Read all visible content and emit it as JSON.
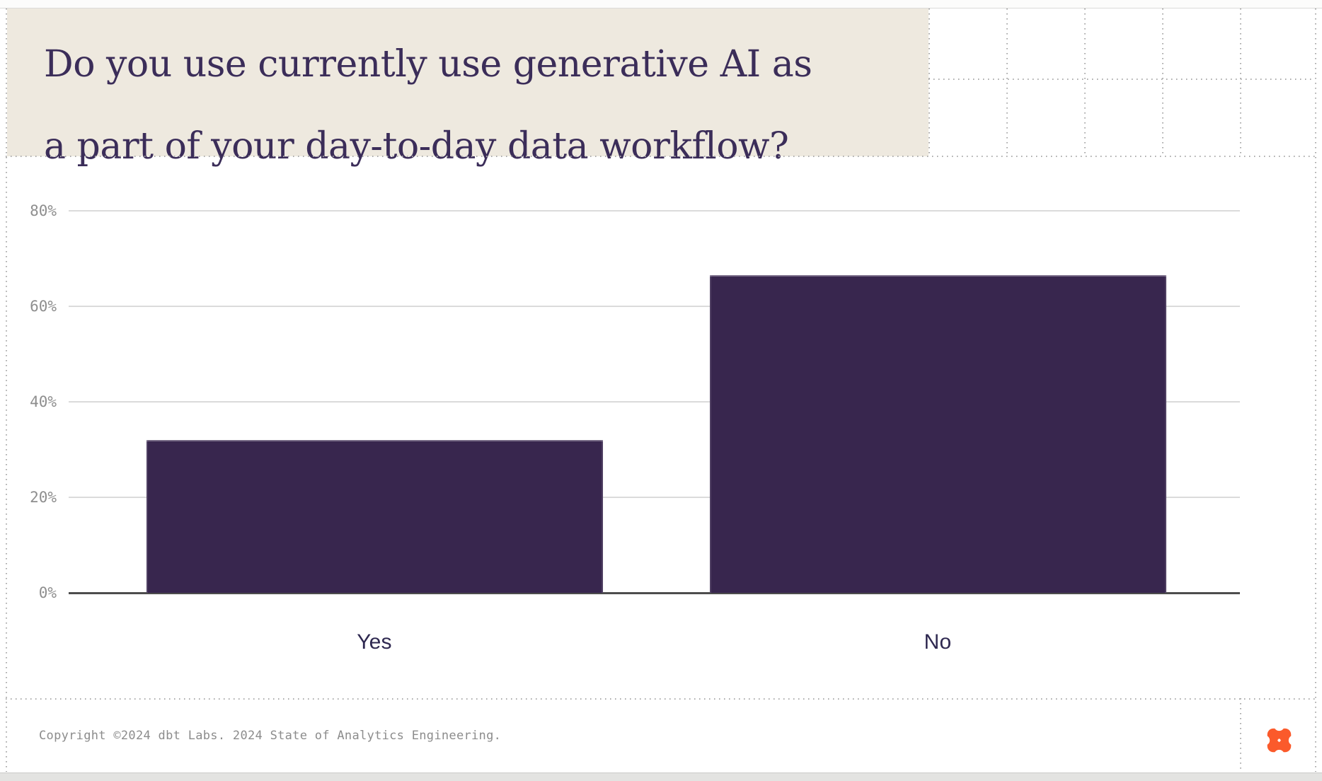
{
  "header": {
    "title_line1": "Do you use currently use generative AI as",
    "title_line2": "a part of your day-to-day data workflow?"
  },
  "chart_data": {
    "type": "bar",
    "title": "Do you use currently use generative AI as a part of your day-to-day data workflow?",
    "categories": [
      "Yes",
      "No"
    ],
    "values": [
      32,
      66.5
    ],
    "value_unit": "percent",
    "xlabel": "",
    "ylabel": "",
    "yticks": [
      0,
      20,
      40,
      60,
      80
    ],
    "ytick_labels": [
      "0%",
      "20%",
      "40%",
      "60%",
      "80%"
    ],
    "ylim": [
      0,
      85
    ],
    "grid": "horizontal",
    "legend": "none",
    "bar_color": "#38264E"
  },
  "footer": {
    "copyright": "Copyright ©2024 dbt Labs. 2024 State of Analytics Engineering.",
    "logo_icon": "dbt-logo"
  },
  "colors": {
    "title_background": "#EEE9DF",
    "title_text": "#3B2D59",
    "bar": "#38264E",
    "gridline": "#DBDBDB",
    "axis": "#4D4D4D",
    "tick_label": "#8E8E8E",
    "category_label": "#2E2850",
    "copyright_text": "#8C8C8C",
    "logo_orange": "#FB5A2B",
    "dotted_guides": "#A9A9A9"
  }
}
